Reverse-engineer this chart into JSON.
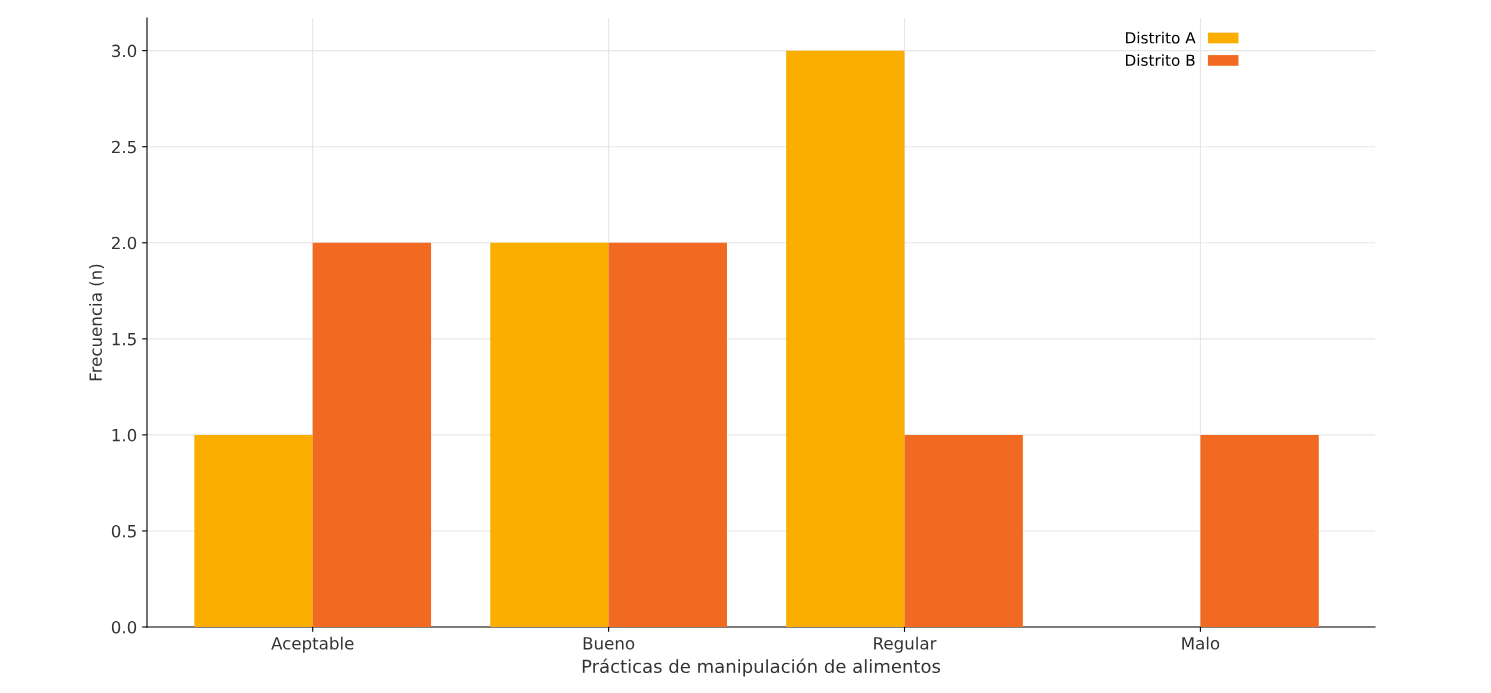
{
  "chart_data": {
    "type": "bar",
    "xlabel": "Prácticas de manipulación de alimentos",
    "ylabel": "Frecuencia (n)",
    "categories": [
      "Aceptable",
      "Bueno",
      "Regular",
      "Malo"
    ],
    "series": [
      {
        "name": "Distrito A",
        "color": "#fbae00",
        "values": [
          1,
          2,
          3,
          0
        ]
      },
      {
        "name": "Distrito B",
        "color": "#f26a21",
        "values": [
          2,
          2,
          1,
          1
        ]
      }
    ],
    "ylim": [
      0,
      3.17
    ],
    "yticks": [
      {
        "value": 0,
        "label": "0.0"
      },
      {
        "value": 0.5,
        "label": "0.5"
      },
      {
        "value": 1,
        "label": "1.0"
      },
      {
        "value": 1.5,
        "label": "1.5"
      },
      {
        "value": 2,
        "label": "2.0"
      },
      {
        "value": 2.5,
        "label": "2.5"
      },
      {
        "value": 3,
        "label": "3.0"
      }
    ],
    "grid": true,
    "legend": "top right"
  }
}
